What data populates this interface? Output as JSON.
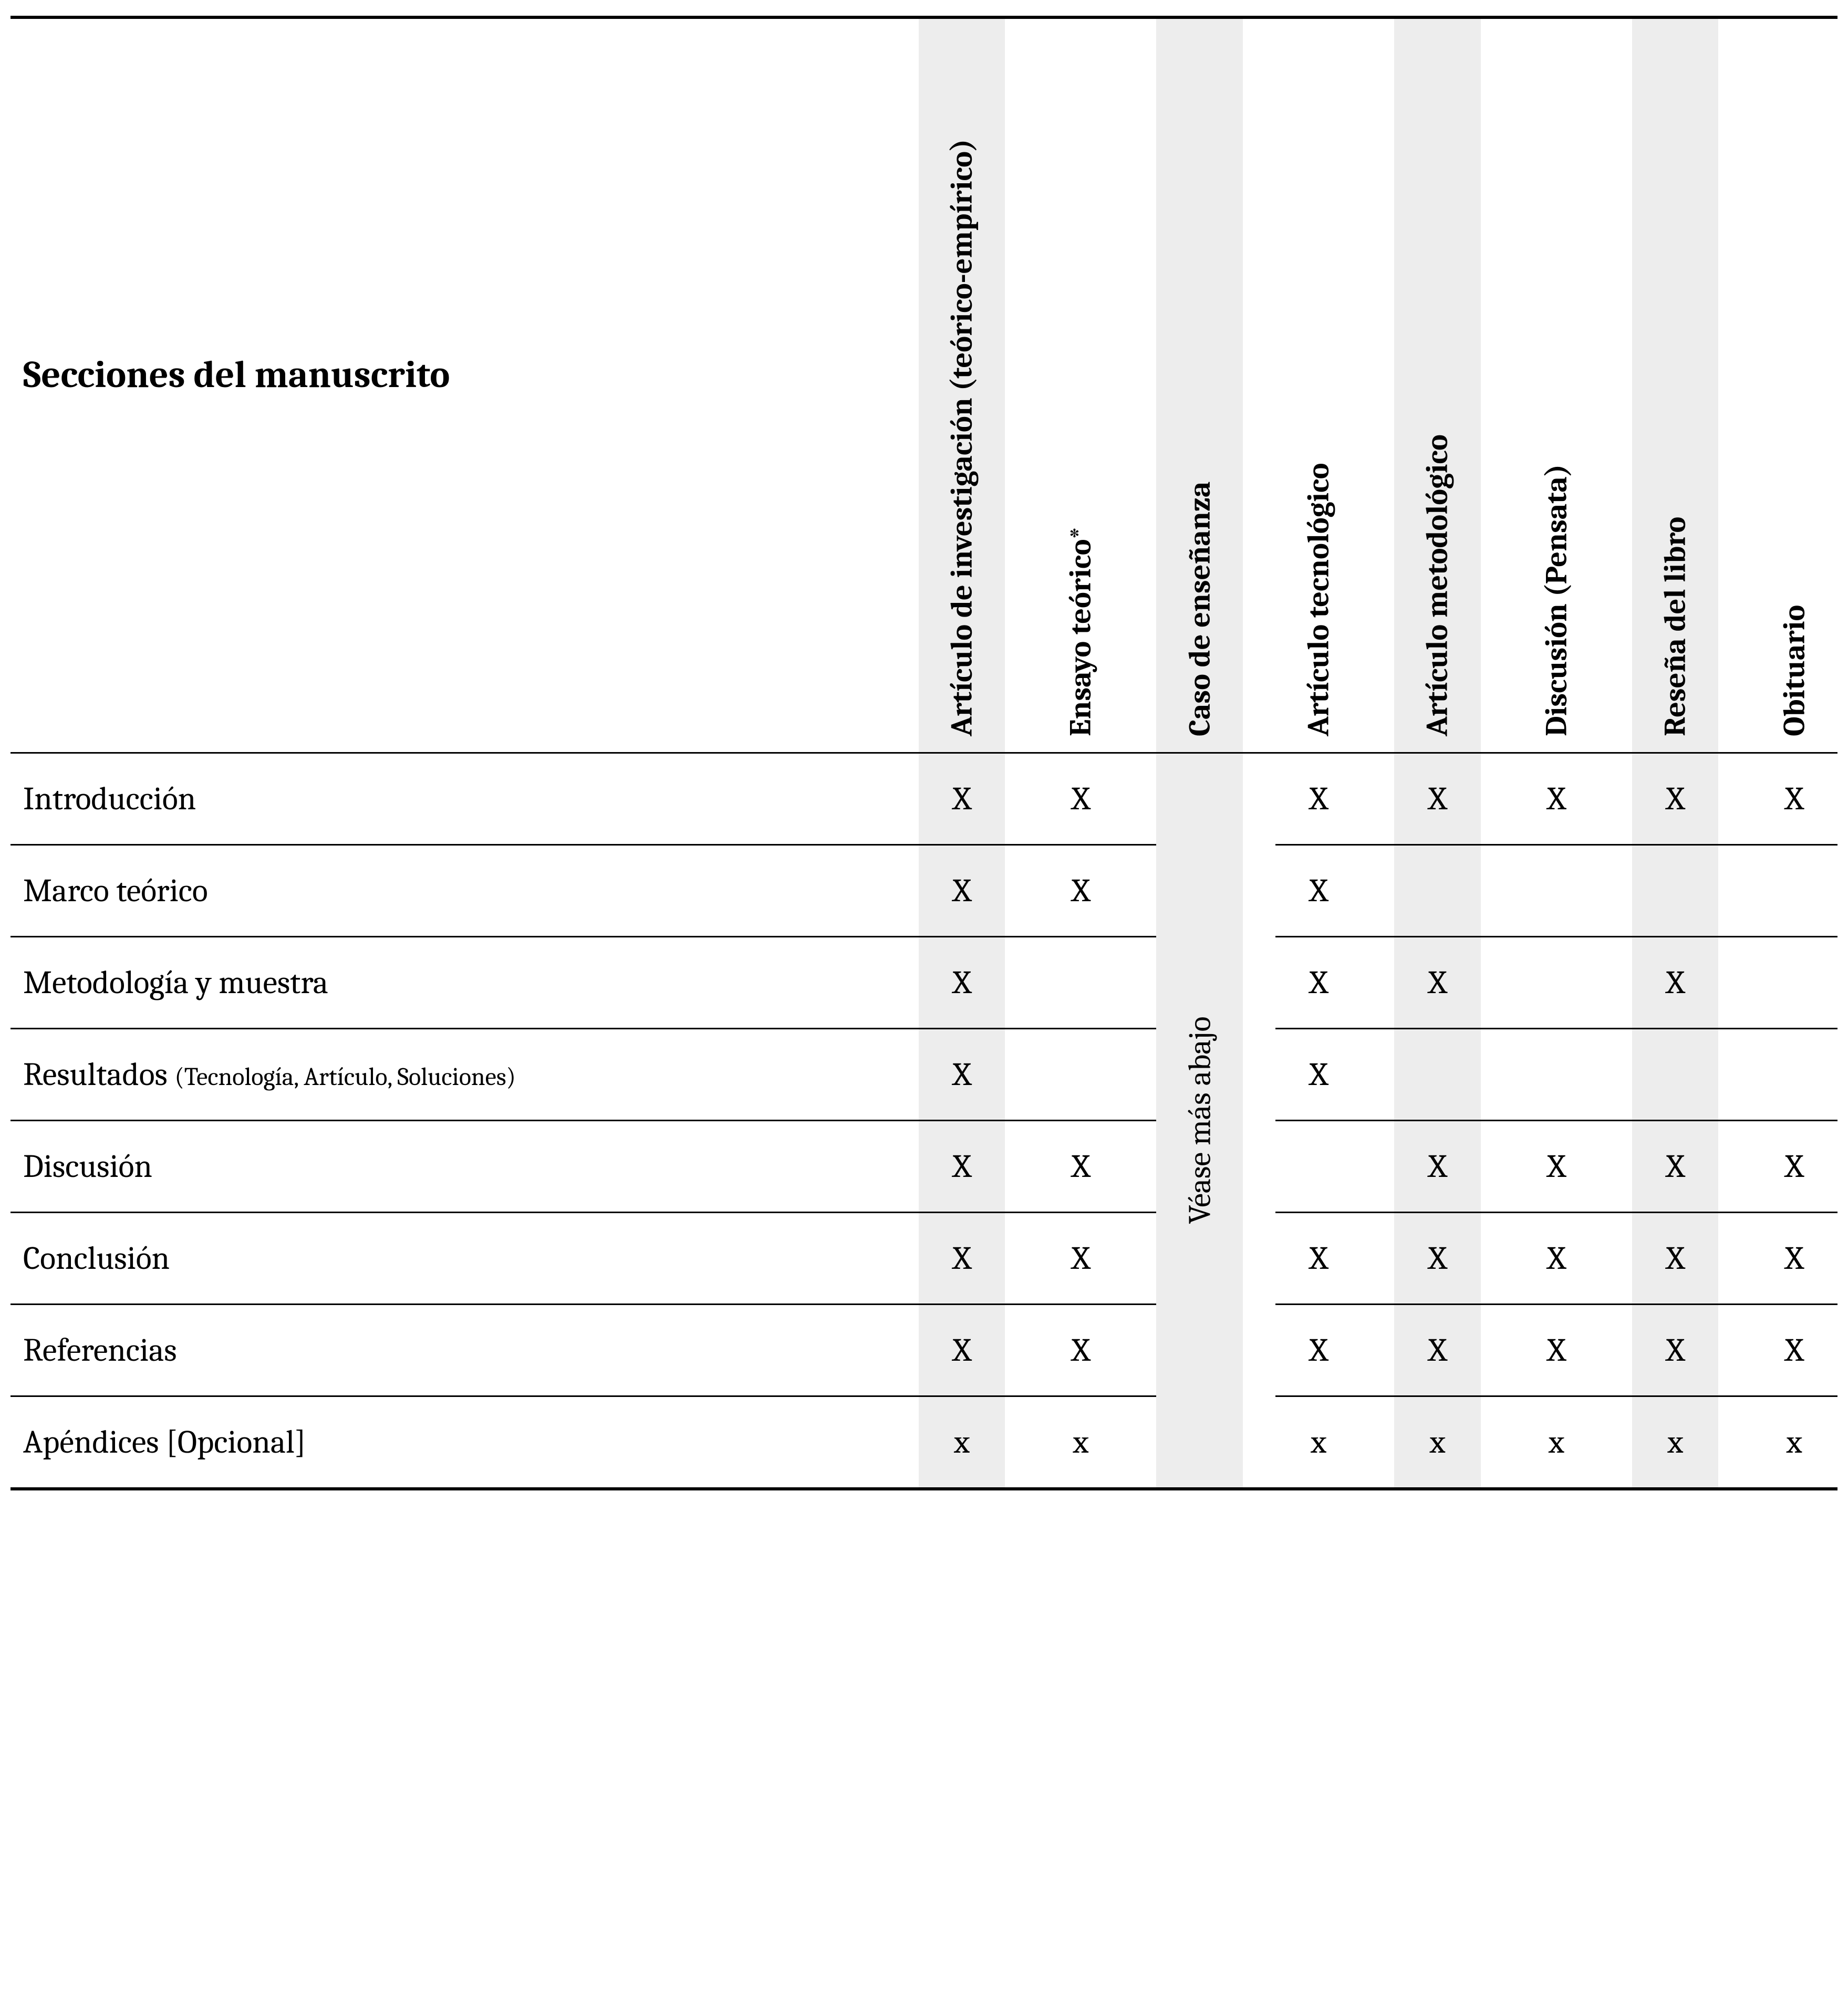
{
  "header": {
    "sections_title": "Secciones del manuscrito",
    "columns": [
      "Artículo de investigación (teórico-empírico)",
      "Ensayo teórico*",
      "Caso de enseñanza",
      "Artículo tecnológico",
      "Artículo metodológico",
      "Discusión (Pensata)",
      "Reseña del libro",
      "Obituario"
    ],
    "merged_column_index": 2,
    "merged_column_text": "Véase más abajo"
  },
  "shaded_columns": [
    0,
    2,
    4,
    6
  ],
  "rows": [
    {
      "label": "Introducción",
      "sublabel": "",
      "marks": [
        "X",
        "X",
        null,
        "X",
        "X",
        "X",
        "X",
        "X"
      ]
    },
    {
      "label": "Marco teórico",
      "sublabel": "",
      "marks": [
        "X",
        "X",
        null,
        "X",
        "",
        "",
        "",
        ""
      ]
    },
    {
      "label": "Metodología y muestra",
      "sublabel": "",
      "marks": [
        "X",
        "",
        null,
        "X",
        "X",
        "",
        "X",
        ""
      ]
    },
    {
      "label": "Resultados ",
      "sublabel": "(Tecnología, Artículo, Soluciones)",
      "marks": [
        "X",
        "",
        null,
        "X",
        "",
        "",
        "",
        ""
      ]
    },
    {
      "label": "Discusión",
      "sublabel": "",
      "marks": [
        "X",
        "X",
        null,
        "",
        "X",
        "X",
        "X",
        "X"
      ]
    },
    {
      "label": "Conclusión",
      "sublabel": "",
      "marks": [
        "X",
        "X",
        null,
        "X",
        "X",
        "X",
        "X",
        "X"
      ]
    },
    {
      "label": "Referencias",
      "sublabel": "",
      "marks": [
        "X",
        "X",
        null,
        "X",
        "X",
        "X",
        "X",
        "X"
      ]
    },
    {
      "label": "Apéndices [Opcional]",
      "sublabel": "",
      "marks": [
        "x",
        "x",
        null,
        "x",
        "x",
        "x",
        "x",
        "x"
      ]
    }
  ],
  "style": {
    "background_color": "#ffffff",
    "shade_color": "#ededed",
    "border_color": "#000000",
    "header_fontsize": 72,
    "column_header_fontsize": 58,
    "row_fontsize": 62,
    "sublabel_fontsize": 48,
    "top_rule_width": 6,
    "mid_rule_width": 3,
    "bottom_rule_width": 6
  }
}
